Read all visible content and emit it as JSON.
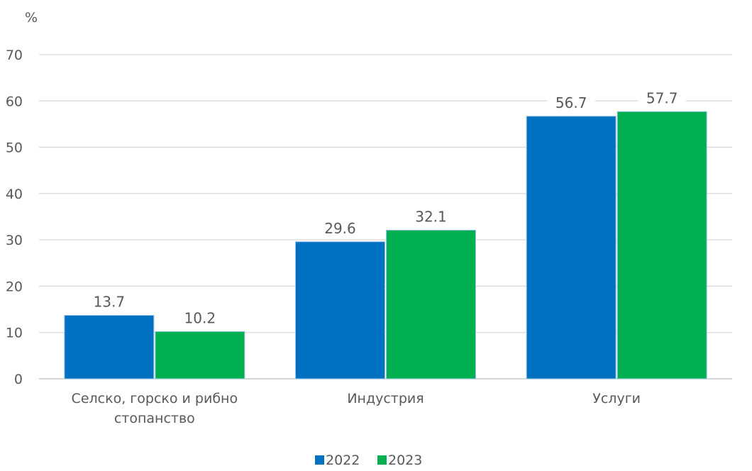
{
  "chart_data": {
    "type": "bar",
    "ylabel": "%",
    "ylim": [
      0,
      70
    ],
    "yticks": [
      0,
      10,
      20,
      30,
      40,
      50,
      60,
      70
    ],
    "grid": true,
    "legend_position": "bottom",
    "categories": [
      [
        "Селско, горско и рибно",
        "стопанство"
      ],
      [
        "Индустрия"
      ],
      [
        "Услуги"
      ]
    ],
    "series": [
      {
        "name": "2022",
        "color": "#0070c0",
        "values": [
          13.7,
          29.6,
          56.7
        ]
      },
      {
        "name": "2023",
        "color": "#00b050",
        "values": [
          10.2,
          32.1,
          57.7
        ]
      }
    ]
  }
}
